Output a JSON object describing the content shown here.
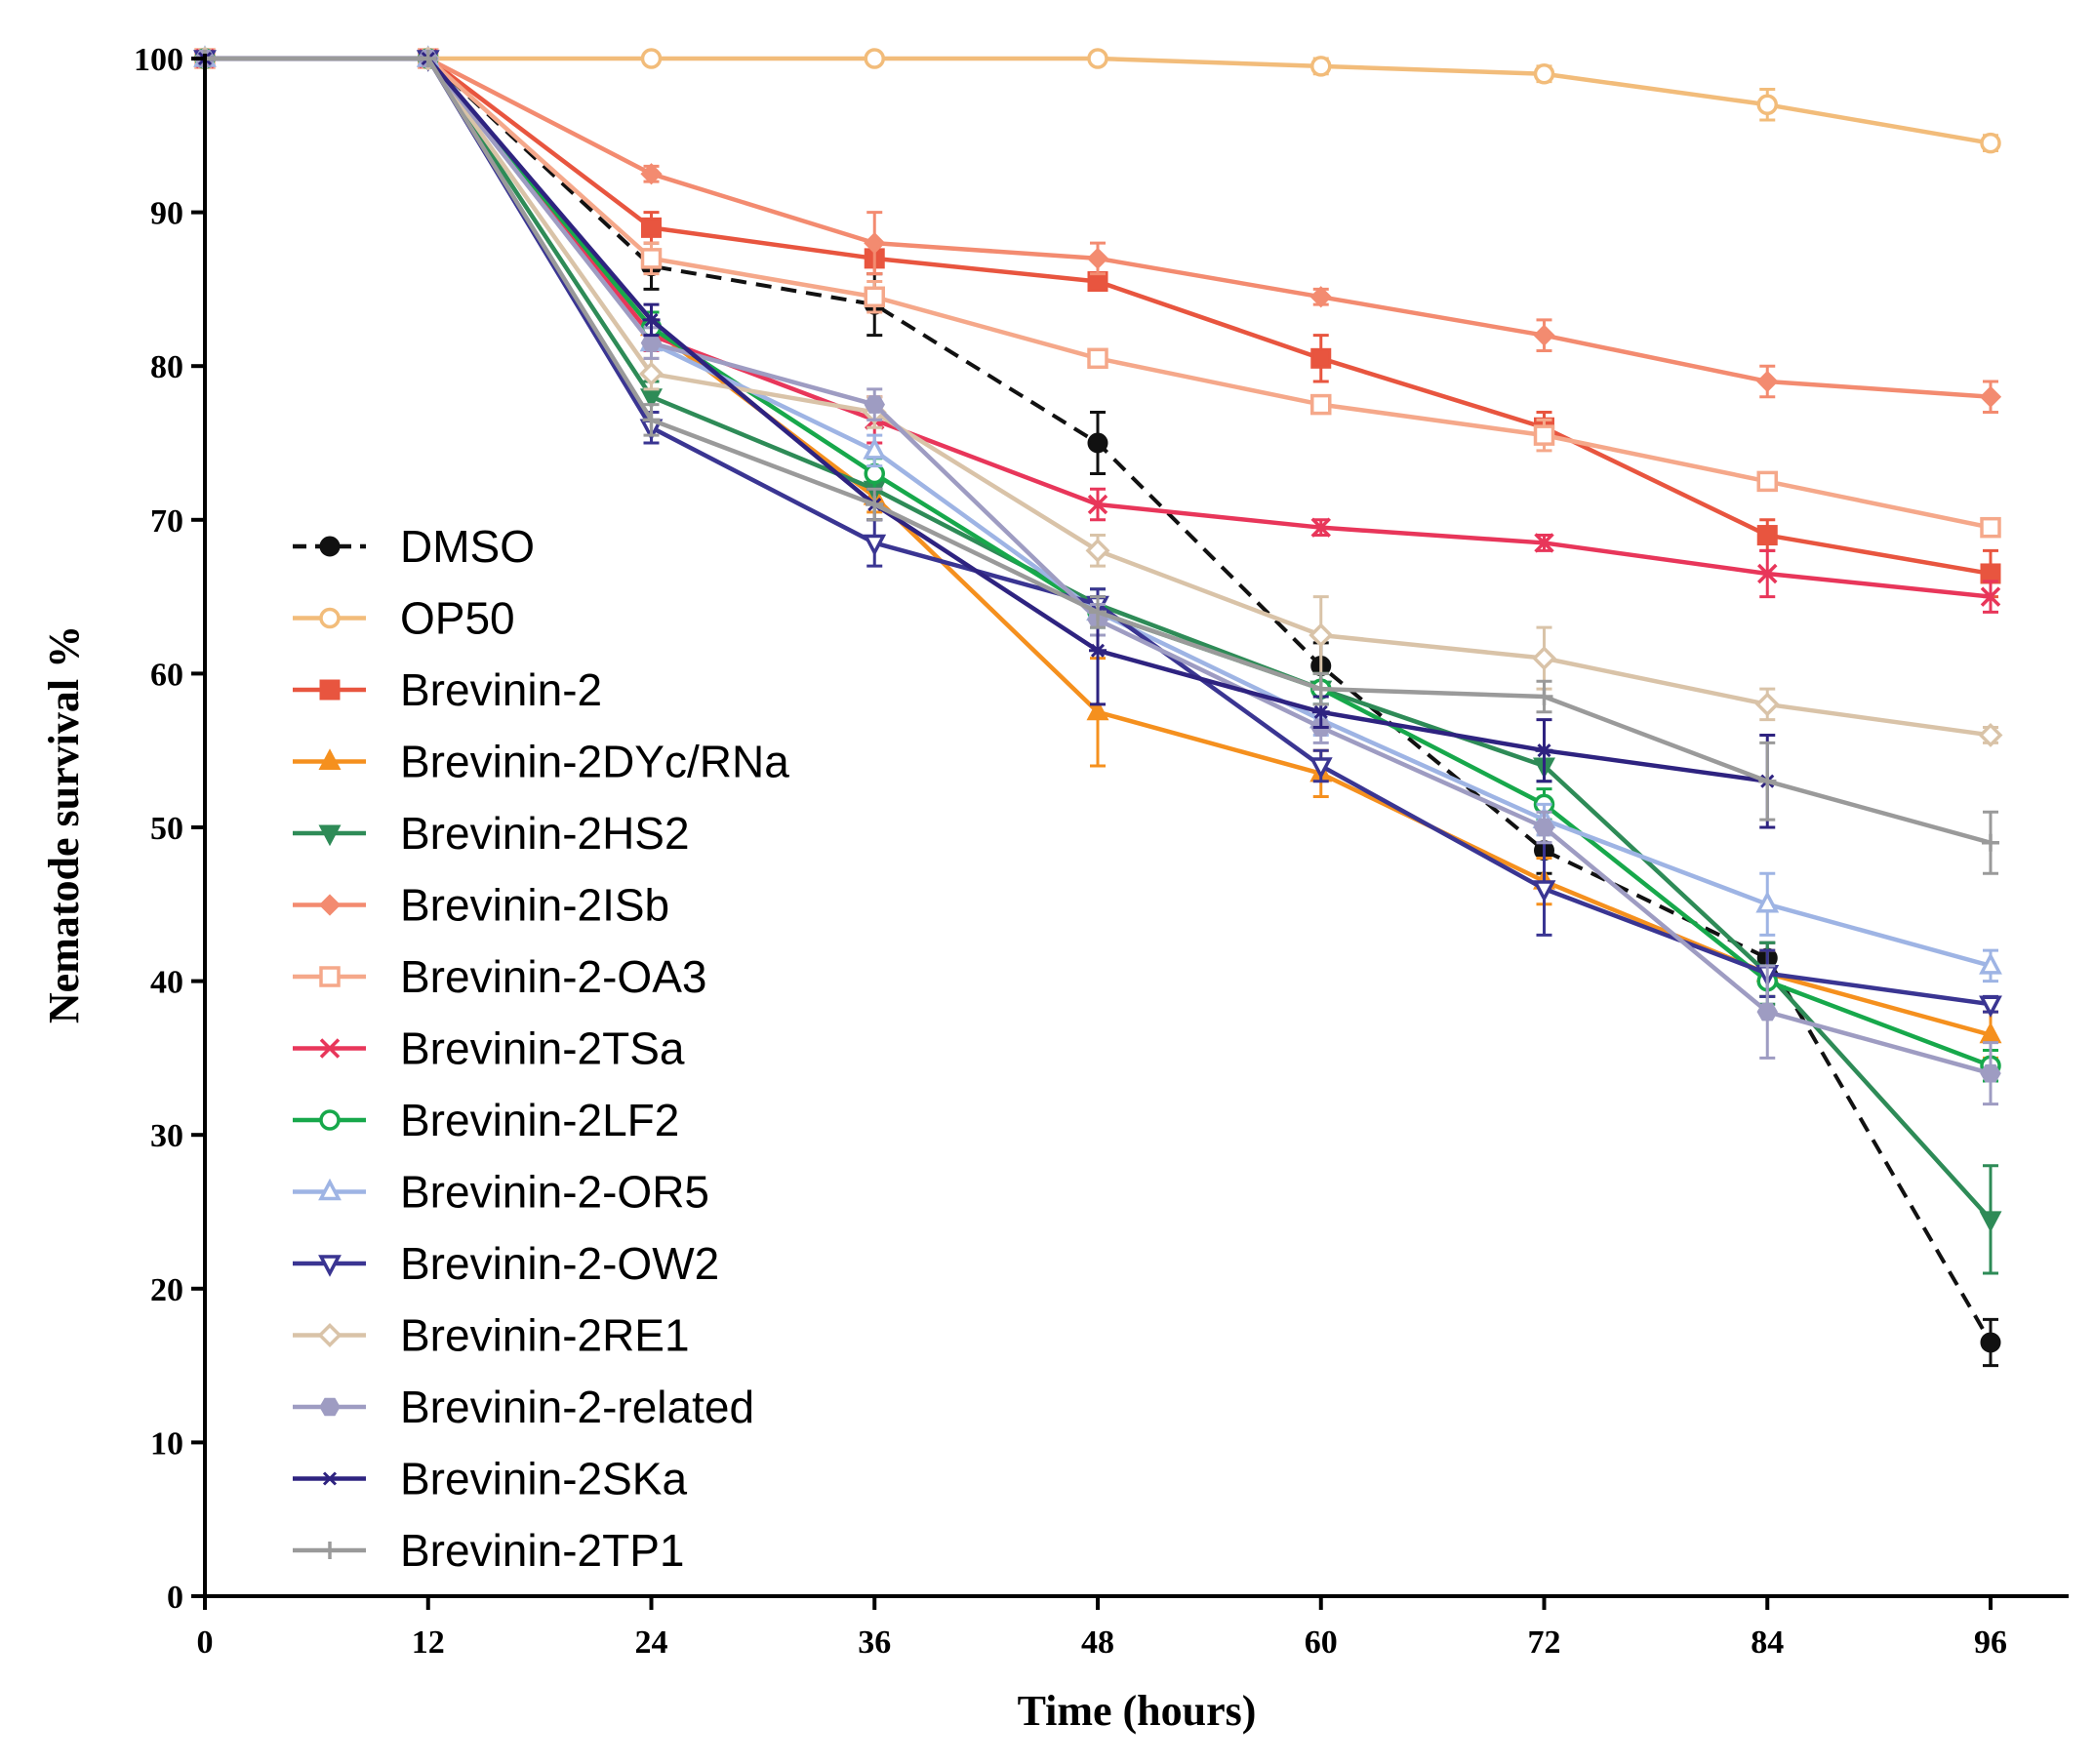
{
  "chart_data": {
    "type": "line",
    "title": "",
    "xlabel": "Time (hours)",
    "ylabel": "Nematode survival %",
    "xlim": [
      0,
      96
    ],
    "ylim": [
      0,
      100
    ],
    "xticks": [
      0,
      12,
      24,
      36,
      48,
      60,
      72,
      84,
      96
    ],
    "yticks": [
      0,
      10,
      20,
      30,
      40,
      50,
      60,
      70,
      80,
      90,
      100
    ],
    "grid": false,
    "legend_position": "left",
    "x": [
      0,
      12,
      24,
      36,
      48,
      60,
      72,
      84,
      96
    ],
    "series": [
      {
        "name": "DMSO",
        "color": "#111111",
        "marker": "circle-filled",
        "dashed": true,
        "values": [
          100,
          100,
          86.5,
          84,
          75,
          60.5,
          48.5,
          41.5,
          16.5
        ],
        "errors": [
          0,
          0,
          1.5,
          2,
          2,
          1.5,
          1.5,
          1,
          1.5
        ]
      },
      {
        "name": "OP50",
        "color": "#F2BC7A",
        "marker": "circle-open",
        "dashed": false,
        "values": [
          100,
          100,
          100,
          100,
          100,
          99.5,
          99,
          97,
          94.5
        ],
        "errors": [
          0,
          0,
          0,
          0,
          0,
          0.5,
          0.5,
          1,
          0.5
        ]
      },
      {
        "name": "Brevinin-2",
        "color": "#E8553F",
        "marker": "square-filled",
        "dashed": false,
        "values": [
          100,
          100,
          89,
          87,
          85.5,
          80.5,
          76,
          69,
          66.5
        ],
        "errors": [
          0,
          0,
          1,
          1,
          0.5,
          1.5,
          1,
          1,
          1.5
        ]
      },
      {
        "name": "Brevinin-2DYc/RNa",
        "color": "#F5901E",
        "marker": "triangle-filled",
        "dashed": false,
        "values": [
          100,
          100,
          82.5,
          71.5,
          57.5,
          53.5,
          46.5,
          40.5,
          36.5
        ],
        "errors": [
          0,
          0,
          1,
          1,
          3.5,
          1.5,
          1.5,
          1.5,
          1.5
        ]
      },
      {
        "name": "Brevinin-2HS2",
        "color": "#2E8B57",
        "marker": "triangle-down-filled",
        "dashed": false,
        "values": [
          100,
          100,
          78,
          72,
          64.5,
          59,
          54,
          40.5,
          24.5
        ],
        "errors": [
          0,
          0,
          1,
          1,
          1,
          1,
          1,
          2,
          3.5
        ]
      },
      {
        "name": "Brevinin-2ISb",
        "color": "#F38B70",
        "marker": "diamond-filled",
        "dashed": false,
        "values": [
          100,
          100,
          92.5,
          88,
          87,
          84.5,
          82,
          79,
          78
        ],
        "errors": [
          0,
          0,
          0.5,
          2,
          1,
          0.5,
          1,
          1,
          1
        ]
      },
      {
        "name": "Brevinin-2-OA3",
        "color": "#F5A88A",
        "marker": "square-open",
        "dashed": false,
        "values": [
          100,
          100,
          87,
          84.5,
          80.5,
          77.5,
          75.5,
          72.5,
          69.5
        ],
        "errors": [
          0,
          0,
          1,
          1,
          0.5,
          0.5,
          1,
          0.5,
          0.5
        ]
      },
      {
        "name": "Brevinin-2TSa",
        "color": "#E8365A",
        "marker": "x",
        "dashed": false,
        "values": [
          100,
          100,
          82,
          76.5,
          71,
          69.5,
          68.5,
          66.5,
          65
        ],
        "errors": [
          0,
          0,
          1,
          1.5,
          1,
          0.5,
          0.5,
          1.5,
          1
        ]
      },
      {
        "name": "Brevinin-2LF2",
        "color": "#17A84B",
        "marker": "circle-open",
        "dashed": false,
        "values": [
          100,
          100,
          82.5,
          73,
          64,
          59,
          51.5,
          40,
          34.5
        ],
        "errors": [
          0,
          0,
          1,
          1,
          1,
          1,
          1,
          1,
          1
        ]
      },
      {
        "name": "Brevinin-2-OR5",
        "color": "#9EB4E4",
        "marker": "triangle-open",
        "dashed": false,
        "values": [
          100,
          100,
          81.5,
          74.5,
          64,
          57,
          50.5,
          45,
          41
        ],
        "errors": [
          0,
          0,
          1,
          1,
          1,
          1,
          1,
          2,
          1
        ]
      },
      {
        "name": "Brevinin-2-OW2",
        "color": "#3A3592",
        "marker": "triangle-down-open",
        "dashed": false,
        "values": [
          100,
          100,
          76,
          68.5,
          64.5,
          54,
          46,
          40.5,
          38.5
        ],
        "errors": [
          0,
          0,
          1,
          1.5,
          1,
          1,
          3,
          1.5,
          0.5
        ]
      },
      {
        "name": "Brevinin-2RE1",
        "color": "#D9C3A8",
        "marker": "diamond-open",
        "dashed": false,
        "values": [
          100,
          100,
          79.5,
          77,
          68,
          62.5,
          61,
          58,
          56
        ],
        "errors": [
          0,
          0,
          1,
          1,
          1,
          2.5,
          2,
          1,
          0.5
        ]
      },
      {
        "name": "Brevinin-2-related",
        "color": "#9E9CC2",
        "marker": "hexagon-filled",
        "dashed": false,
        "values": [
          100,
          100,
          81.5,
          77.5,
          63.5,
          56.5,
          50,
          38,
          34
        ],
        "errors": [
          0,
          0,
          1,
          1,
          1,
          1,
          1,
          3,
          2
        ]
      },
      {
        "name": "Brevinin-2SKa",
        "color": "#2E2380",
        "marker": "star",
        "dashed": false,
        "values": [
          100,
          100,
          83,
          71,
          61.5,
          57.5,
          55,
          53,
          null
        ],
        "errors": [
          0,
          0,
          1,
          1,
          3.5,
          1,
          2,
          3,
          0
        ]
      },
      {
        "name": "Brevinin-2TP1",
        "color": "#9A9A9A",
        "marker": "plus",
        "dashed": false,
        "values": [
          100,
          100,
          76.5,
          71,
          64,
          59,
          58.5,
          53,
          49
        ],
        "errors": [
          0,
          0,
          1,
          1,
          1,
          1,
          1,
          2.5,
          2
        ]
      }
    ]
  }
}
